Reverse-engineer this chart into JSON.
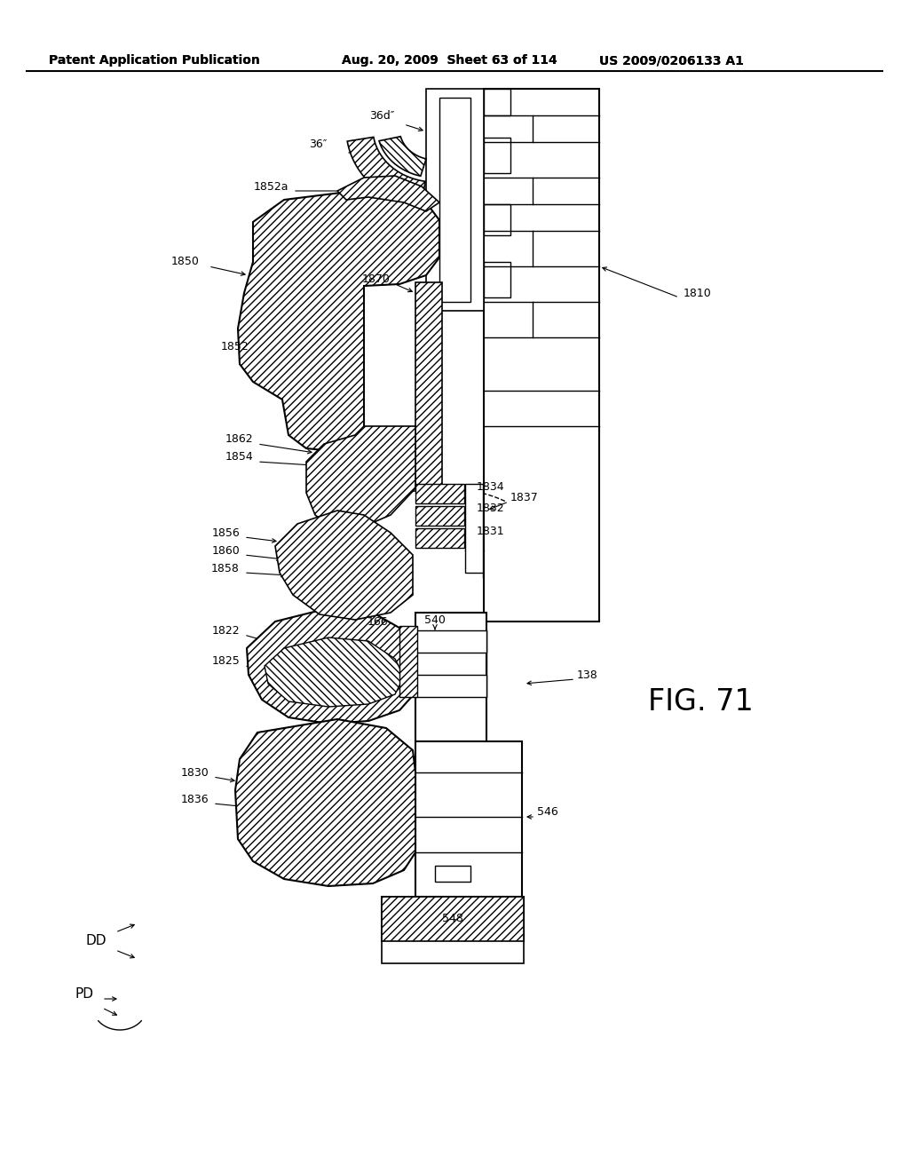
{
  "bg_color": "#ffffff",
  "header_text": "Patent Application Publication",
  "header_date": "Aug. 20, 2009  Sheet 63 of 114",
  "header_patent": "US 2009/0206133 A1",
  "fig_label": "FIG. 71"
}
